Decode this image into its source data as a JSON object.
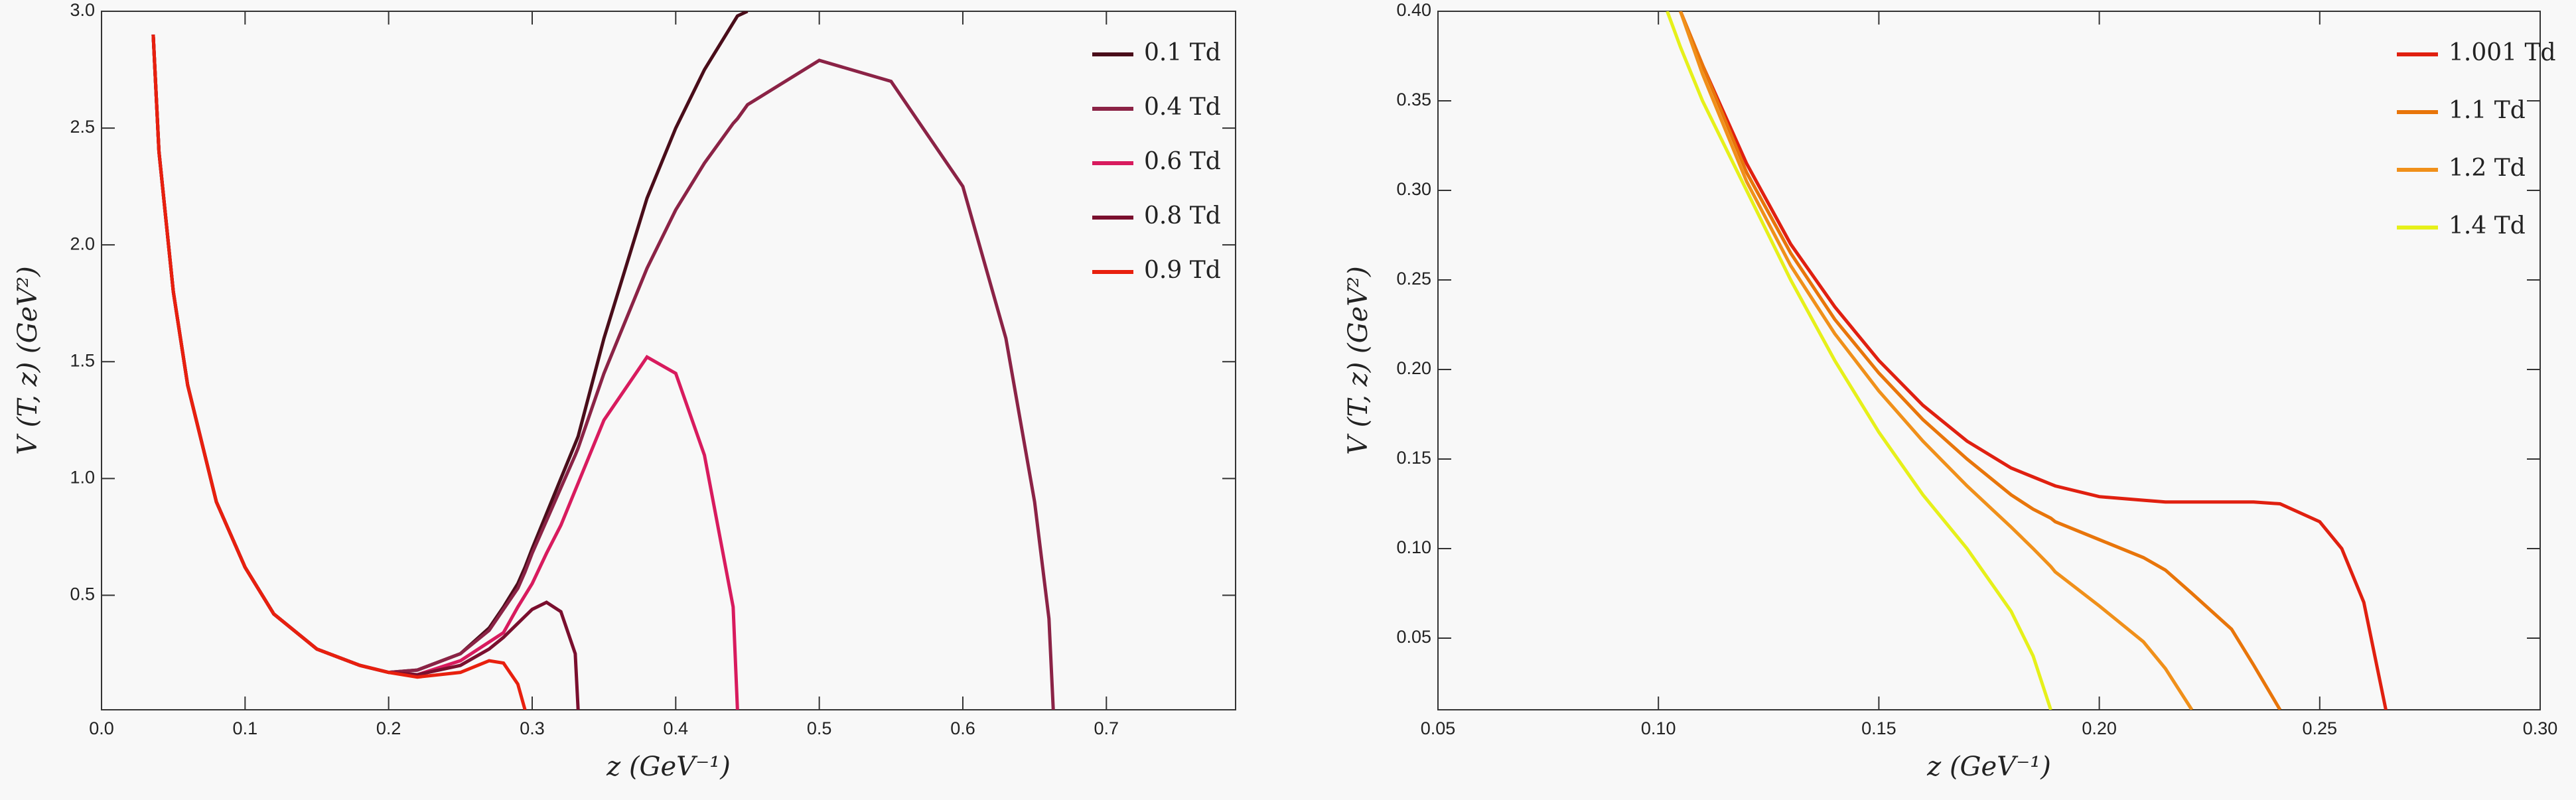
{
  "chart_data": [
    {
      "type": "line",
      "x_label": "z  (GeV⁻¹)",
      "y_label": "V (T, z)  (GeV²)",
      "x": [
        0.036,
        0.04,
        0.05,
        0.06,
        0.08,
        0.1,
        0.12,
        0.15,
        0.18,
        0.2,
        0.22,
        0.25,
        0.27,
        0.28,
        0.29,
        0.295,
        0.3,
        0.31,
        0.32,
        0.33,
        0.332,
        0.35,
        0.38,
        0.4,
        0.42,
        0.44,
        0.443,
        0.45,
        0.5,
        0.55,
        0.6,
        0.63,
        0.65,
        0.66,
        0.663
      ],
      "series": [
        {
          "name": "0.1 Td",
          "color": "#4a0d1a",
          "values": [
            2.9,
            2.4,
            1.8,
            1.4,
            0.9,
            0.62,
            0.42,
            0.27,
            0.2,
            0.17,
            0.18,
            0.25,
            0.36,
            0.45,
            0.55,
            0.62,
            0.7,
            0.85,
            1.0,
            1.15,
            1.18,
            1.6,
            2.2,
            2.5,
            2.75,
            2.95,
            2.98,
            3.0,
            null,
            null,
            null,
            null,
            null,
            null,
            null
          ]
        },
        {
          "name": "0.4 Td",
          "color": "#8b2346",
          "values": [
            2.9,
            2.4,
            1.8,
            1.4,
            0.9,
            0.62,
            0.42,
            0.27,
            0.2,
            0.17,
            0.18,
            0.25,
            0.35,
            0.44,
            0.53,
            0.6,
            0.68,
            0.82,
            0.96,
            1.1,
            1.13,
            1.45,
            1.9,
            2.15,
            2.35,
            2.52,
            2.54,
            2.6,
            2.79,
            2.7,
            2.25,
            1.6,
            0.9,
            0.4,
            0.01
          ]
        },
        {
          "name": "0.6 Td",
          "color": "#d81b5e",
          "values": [
            2.9,
            2.4,
            1.8,
            1.4,
            0.9,
            0.62,
            0.42,
            0.27,
            0.2,
            0.17,
            0.16,
            0.22,
            0.3,
            0.34,
            0.45,
            0.5,
            0.55,
            0.68,
            0.8,
            0.95,
            0.98,
            1.25,
            1.52,
            1.45,
            1.1,
            0.45,
            0.01,
            null,
            null,
            null,
            null,
            null,
            null,
            null,
            null
          ]
        },
        {
          "name": "0.8 Td",
          "color": "#7a0f2e",
          "values": [
            2.9,
            2.4,
            1.8,
            1.4,
            0.9,
            0.62,
            0.42,
            0.27,
            0.2,
            0.17,
            0.16,
            0.2,
            0.27,
            0.32,
            0.38,
            0.41,
            0.44,
            0.47,
            0.43,
            0.25,
            0.01,
            null,
            null,
            null,
            null,
            null,
            null,
            null,
            null,
            null,
            null,
            null,
            null,
            null,
            null
          ]
        },
        {
          "name": "0.9 Td",
          "color": "#e8200e",
          "values": [
            2.9,
            2.4,
            1.8,
            1.4,
            0.9,
            0.62,
            0.42,
            0.27,
            0.2,
            0.17,
            0.15,
            0.17,
            0.22,
            0.21,
            0.12,
            0.01,
            null,
            null,
            null,
            null,
            null,
            null,
            null,
            null,
            null,
            null,
            null,
            null,
            null,
            null,
            null,
            null,
            null,
            null,
            null
          ]
        }
      ],
      "xlim": [
        0,
        0.79
      ],
      "xticks": [
        {
          "value": 0,
          "label": "0.0"
        },
        0.1,
        0.2,
        0.3,
        0.4,
        0.5,
        0.6,
        0.7
      ],
      "ylim": [
        0.01,
        3.0
      ],
      "yticks": [
        0.5,
        {
          "value": 1,
          "label": "1.0"
        },
        1.5,
        {
          "value": 2,
          "label": "2.0"
        },
        2.5,
        {
          "value": 3,
          "label": "3.0"
        }
      ],
      "grid": false,
      "legend": "upper right"
    },
    {
      "type": "line",
      "x_label": "z  (GeV⁻¹)",
      "y_label": "V (T, z)  (GeV²)",
      "x": [
        0.102,
        0.105,
        0.11,
        0.12,
        0.13,
        0.14,
        0.15,
        0.16,
        0.17,
        0.18,
        0.185,
        0.189,
        0.19,
        0.2,
        0.21,
        0.215,
        0.221,
        0.23,
        0.235,
        0.241,
        0.25,
        0.255,
        0.26,
        0.265
      ],
      "series": [
        {
          "name": "1.001 Td",
          "color": "#e02010",
          "values": [
            null,
            0.4,
            0.37,
            0.315,
            0.27,
            0.235,
            0.205,
            0.18,
            0.16,
            0.145,
            0.14,
            0.136,
            0.135,
            0.129,
            0.127,
            0.126,
            0.126,
            0.126,
            0.126,
            0.125,
            0.115,
            0.1,
            0.07,
            0.01
          ]
        },
        {
          "name": "1.1 Td",
          "color": "#e8750a",
          "values": [
            null,
            0.4,
            0.37,
            0.31,
            0.265,
            0.228,
            0.198,
            0.172,
            0.15,
            0.13,
            0.122,
            0.117,
            0.115,
            0.105,
            0.095,
            0.088,
            0.075,
            0.055,
            0.035,
            0.01,
            null,
            null,
            null,
            null
          ]
        },
        {
          "name": "1.2 Td",
          "color": "#f0901a",
          "values": [
            null,
            0.4,
            0.365,
            0.305,
            0.258,
            0.22,
            0.188,
            0.16,
            0.135,
            0.112,
            0.1,
            0.09,
            0.087,
            0.068,
            0.048,
            0.033,
            0.01,
            null,
            null,
            null,
            null,
            null,
            null,
            null
          ]
        },
        {
          "name": "1.4 Td",
          "color": "#e6f01a",
          "values": [
            0.4,
            0.38,
            0.35,
            0.3,
            0.25,
            0.205,
            0.165,
            0.13,
            0.1,
            0.065,
            0.04,
            0.01,
            null,
            null,
            null,
            null,
            null,
            null,
            null,
            null,
            null,
            null,
            null,
            null
          ]
        }
      ],
      "xlim": [
        0.05,
        0.3
      ],
      "xticks": [
        0.05,
        {
          "value": 0.1,
          "label": "0.10"
        },
        0.15,
        {
          "value": 0.2,
          "label": "0.20"
        },
        0.25,
        {
          "value": 0.3,
          "label": "0.30"
        }
      ],
      "ylim": [
        0.01,
        0.4
      ],
      "yticks": [
        0.05,
        {
          "value": 0.1,
          "label": "0.10"
        },
        0.15,
        {
          "value": 0.2,
          "label": "0.20"
        },
        0.25,
        {
          "value": 0.3,
          "label": "0.30"
        },
        0.35,
        {
          "value": 0.4,
          "label": "0.40"
        }
      ],
      "grid": false,
      "legend": "upper right"
    }
  ]
}
